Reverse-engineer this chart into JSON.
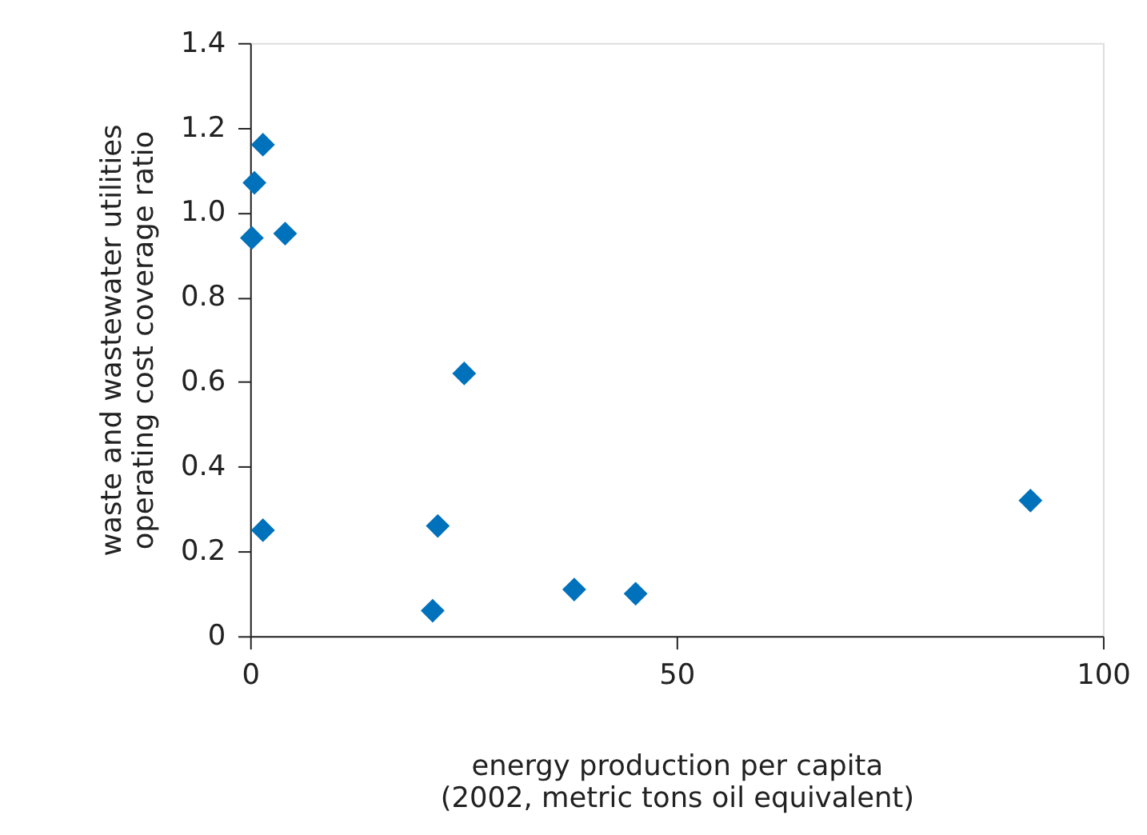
{
  "chart_data": {
    "type": "scatter",
    "xlabel": "energy production per capita\n(2002, metric tons oil equivalent)",
    "ylabel": "waste and wastewater utilities\noperating cost coverage ratio",
    "x": [
      1.5,
      0.5,
      0.2,
      4.1,
      25.1,
      1.5,
      22,
      21.4,
      38,
      45.2,
      91.5
    ],
    "series": [
      {
        "color": "#0072bc",
        "values": [
          1.16,
          1.07,
          0.94,
          0.95,
          0.62,
          0.25,
          0.26,
          0.06,
          0.11,
          0.1,
          0.32
        ]
      }
    ],
    "marker": "diamond",
    "grid": false,
    "xlim": [
      0,
      100
    ],
    "xticks": [
      0,
      50,
      100
    ],
    "ylim": [
      0,
      1.4
    ],
    "yticks": [
      0,
      {
        "value": 0.2,
        "label": "0.2"
      },
      {
        "value": 0.4,
        "label": "0.4"
      },
      {
        "value": 0.6,
        "label": "0.6"
      },
      {
        "value": 0.8,
        "label": "0.8"
      },
      {
        "value": 1.0,
        "label": "1.0"
      },
      {
        "value": 1.2,
        "label": "1.2"
      },
      {
        "value": 1.4,
        "label": "1.4"
      }
    ]
  }
}
